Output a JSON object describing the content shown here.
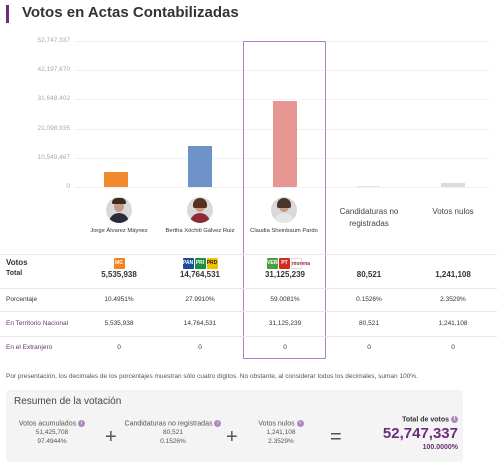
{
  "header": {
    "title": "Votos en Actas Contabilizadas"
  },
  "chart_data": {
    "type": "bar",
    "yticks": [
      "52,747,337",
      "42,197,870",
      "31,648,402",
      "21,098,935",
      "10,549,467",
      "0"
    ],
    "categories": [
      "Jorge Álvarez Máynez",
      "Bertha Xóchitl Gálvez Ruiz",
      "Claudia Sheinbaum Pardo",
      "Candidaturas no registradas",
      "Votos nulos"
    ],
    "values": [
      5535938,
      14764531,
      31125239,
      80521,
      1241108
    ],
    "colors": [
      "#f08a2c",
      "#6d93c9",
      "#e89694",
      "#e5e5e5",
      "#dcdcdc"
    ],
    "ylim": [
      0,
      52747337
    ]
  },
  "candidates": [
    {
      "name": "Jorge Álvarez Máynez"
    },
    {
      "name": "Bertha Xóchitl Gálvez Ruiz"
    },
    {
      "name": "Claudia Sheinbaum Pardo"
    },
    {
      "name": "Candidaturas no registradas"
    },
    {
      "name": "Votos nulos"
    }
  ],
  "table": {
    "votos_label": "Votos",
    "total_label": "Total",
    "logos": {
      "mc": "MC",
      "pan": "PAN",
      "pri": "PRI",
      "prd": "PRD",
      "pvem": "VERDE",
      "pt": "PT",
      "morena": "morena"
    },
    "rows": [
      {
        "label": "Total",
        "values": [
          "5,535,938",
          "14,764,531",
          "31,125,239",
          "80,521",
          "1,241,108"
        ]
      },
      {
        "label": "Porcentaje",
        "values": [
          "10.4951%",
          "27.9910%",
          "59.0081%",
          "0.1526%",
          "2.3529%"
        ]
      },
      {
        "label": "En Territorio Nacional",
        "values": [
          "5,535,938",
          "14,764,531",
          "31,125,239",
          "80,521",
          "1,241,108"
        ]
      },
      {
        "label": "En el Extranjero",
        "values": [
          "0",
          "0",
          "0",
          "0",
          "0"
        ]
      }
    ]
  },
  "note": "Por presentación, los decimales de los porcentajes muestran sólo cuatro dígitos. No obstante, al considerar todos los decimales, suman 100%.",
  "summary": {
    "title": "Resumen de la votación",
    "acumulados": {
      "label": "Votos acumulados",
      "value": "51,425,708",
      "pct": "97.4944%"
    },
    "no_registradas": {
      "label": "Candidaturas no registradas",
      "value": "80,521",
      "pct": "0.1526%"
    },
    "nulos": {
      "label": "Votos nulos",
      "value": "1,241,108",
      "pct": "2.3529%"
    },
    "total": {
      "label": "Total de votos",
      "value": "52,747,337",
      "pct": "100.0000%"
    },
    "plus": "+",
    "equals": "=",
    "info": "i"
  }
}
